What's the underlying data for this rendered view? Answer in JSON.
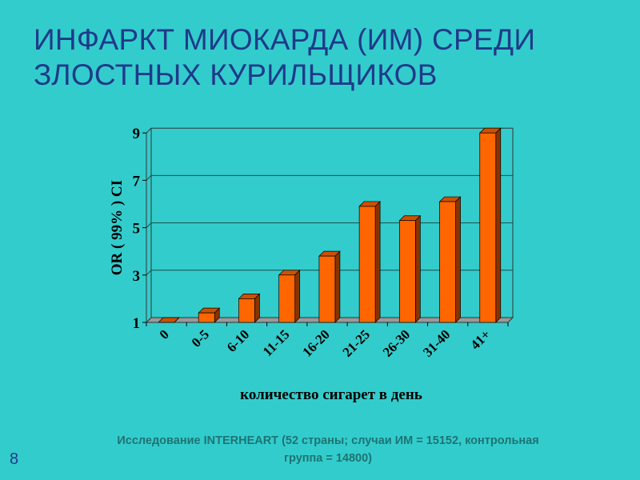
{
  "slide": {
    "title_line1": "ИНФАРКТ МИОКАРДА (ИМ) СРЕДИ",
    "title_line2": "ЗЛОСТНЫХ КУРИЛЬЩИКОВ",
    "footnote_line1": "Исследование INTERHEART (52 страны; случаи ИМ = 15152,  контрольная",
    "footnote_line2": "группа = 14800)",
    "page_number": "8"
  },
  "chart_data": {
    "type": "bar",
    "title": "",
    "xlabel": "количество сигарет в день",
    "ylabel": "OR ( 99% ) CI",
    "categories": [
      "0",
      "0-5",
      "6-10",
      "11-15",
      "16-20",
      "21-25",
      "26-30",
      "31-40",
      "41+"
    ],
    "values": [
      1.0,
      1.4,
      2.0,
      3.0,
      3.8,
      5.9,
      5.3,
      6.1,
      9.0
    ],
    "ylim": [
      1,
      9
    ],
    "yticks": [
      "1",
      "3",
      "5",
      "7",
      "9"
    ],
    "grid": true,
    "legend": "none",
    "colors": {
      "bar_front": "#FF6600",
      "bar_side": "#8B3300",
      "bar_top": "#CC5200",
      "floor": "#999999"
    }
  }
}
